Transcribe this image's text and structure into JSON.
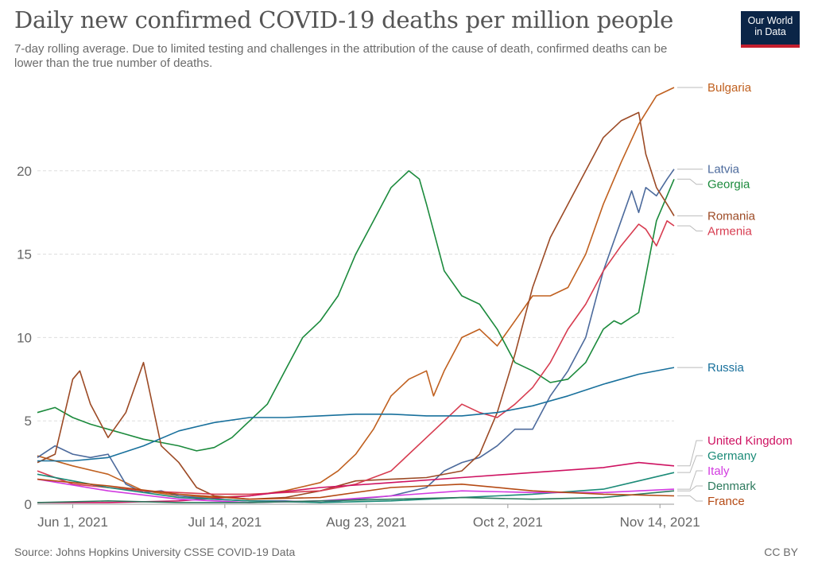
{
  "header": {
    "title": "Daily new confirmed COVID-19 deaths per million people",
    "subtitle": "7-day rolling average. Due to limited testing and challenges in the attribution of the cause of death, confirmed deaths can be lower than the true number of deaths.",
    "logo_line1": "Our World",
    "logo_line2": "in Data"
  },
  "footer": {
    "source": "Source: Johns Hopkins University CSSE COVID-19 Data",
    "license": "CC BY"
  },
  "chart_data": {
    "type": "line",
    "title": "Daily new confirmed COVID-19 deaths per million people",
    "xlabel": "",
    "ylabel": "",
    "x_range": [
      0,
      180
    ],
    "ylim": [
      0,
      25
    ],
    "grid": true,
    "legend_position": "right",
    "y_ticks": [
      0,
      5,
      10,
      15,
      20
    ],
    "x_ticks": [
      {
        "label": "Jun 1, 2021",
        "day": 10
      },
      {
        "label": "Jul 14, 2021",
        "day": 53
      },
      {
        "label": "Aug 23, 2021",
        "day": 93
      },
      {
        "label": "Oct 2, 2021",
        "day": 133
      },
      {
        "label": "Nov 14, 2021",
        "day": 176
      }
    ],
    "x_note": "x values are days since May 22, 2021",
    "series": [
      {
        "name": "Bulgaria",
        "color": "#c0601f",
        "x": [
          0,
          10,
          20,
          25,
          30,
          40,
          50,
          60,
          70,
          80,
          85,
          90,
          95,
          100,
          105,
          110,
          112,
          115,
          120,
          125,
          130,
          135,
          140,
          145,
          150,
          155,
          160,
          165,
          170,
          175,
          180
        ],
        "y": [
          2.9,
          2.3,
          1.8,
          1.3,
          0.8,
          0.5,
          0.4,
          0.5,
          0.8,
          1.3,
          2.0,
          3.0,
          4.5,
          6.5,
          7.5,
          8.0,
          6.5,
          8.0,
          10.0,
          10.5,
          9.5,
          11.0,
          12.5,
          12.5,
          13.0,
          15.0,
          18.0,
          20.5,
          22.8,
          24.5,
          25.0
        ]
      },
      {
        "name": "Latvia",
        "color": "#4c6a9c",
        "x": [
          0,
          5,
          10,
          15,
          20,
          25,
          30,
          35,
          40,
          50,
          60,
          70,
          80,
          90,
          100,
          110,
          115,
          120,
          125,
          130,
          135,
          140,
          145,
          150,
          155,
          160,
          165,
          168,
          170,
          172,
          175,
          178,
          180
        ],
        "y": [
          2.8,
          3.5,
          3.0,
          2.8,
          3.0,
          1.2,
          0.7,
          0.8,
          0.5,
          0.3,
          0.2,
          0.2,
          0.1,
          0.3,
          0.5,
          1.0,
          2.0,
          2.5,
          2.8,
          3.5,
          4.5,
          4.5,
          6.5,
          8.0,
          10.0,
          14.0,
          17.0,
          18.8,
          17.5,
          19.0,
          18.5,
          19.5,
          20.1
        ]
      },
      {
        "name": "Georgia",
        "color": "#1b8a3c",
        "x": [
          0,
          5,
          10,
          15,
          20,
          25,
          30,
          35,
          40,
          45,
          50,
          55,
          60,
          65,
          70,
          75,
          80,
          85,
          90,
          95,
          100,
          105,
          108,
          110,
          115,
          120,
          125,
          130,
          135,
          140,
          145,
          150,
          155,
          160,
          163,
          165,
          170,
          175,
          180
        ],
        "y": [
          5.5,
          5.8,
          5.2,
          4.8,
          4.5,
          4.2,
          3.9,
          3.7,
          3.5,
          3.2,
          3.4,
          4.0,
          5.0,
          6.0,
          8.0,
          10.0,
          11.0,
          12.5,
          15.0,
          17.0,
          19.0,
          20.0,
          19.5,
          18.0,
          14.0,
          12.5,
          12.0,
          10.5,
          8.5,
          8.0,
          7.3,
          7.5,
          8.5,
          10.5,
          11.0,
          10.8,
          11.5,
          17.0,
          19.5
        ]
      },
      {
        "name": "Romania",
        "color": "#9c4a25",
        "x": [
          0,
          5,
          10,
          12,
          15,
          20,
          25,
          30,
          35,
          40,
          45,
          50,
          60,
          70,
          80,
          90,
          100,
          110,
          120,
          125,
          130,
          135,
          140,
          145,
          150,
          155,
          160,
          165,
          170,
          172,
          175,
          178,
          180
        ],
        "y": [
          2.5,
          3.0,
          7.5,
          8.0,
          6.0,
          4.0,
          5.5,
          8.5,
          3.5,
          2.5,
          1.0,
          0.5,
          0.3,
          0.4,
          0.8,
          1.4,
          1.5,
          1.6,
          2.0,
          3.0,
          5.5,
          9.0,
          13.0,
          16.0,
          18.0,
          20.0,
          22.0,
          23.0,
          23.5,
          21.0,
          19.0,
          18.0,
          17.3
        ]
      },
      {
        "name": "Armenia",
        "color": "#d73c50",
        "x": [
          0,
          10,
          20,
          30,
          40,
          50,
          60,
          70,
          80,
          90,
          100,
          110,
          115,
          120,
          125,
          130,
          135,
          140,
          145,
          150,
          155,
          160,
          165,
          170,
          172,
          175,
          178,
          180
        ],
        "y": [
          2.0,
          1.2,
          1.0,
          0.8,
          0.7,
          0.6,
          0.6,
          0.7,
          0.8,
          1.2,
          2.0,
          4.0,
          5.0,
          6.0,
          5.5,
          5.2,
          6.0,
          7.0,
          8.5,
          10.5,
          12.0,
          14.0,
          15.5,
          16.8,
          16.5,
          15.5,
          17.0,
          16.7
        ]
      },
      {
        "name": "Russia",
        "color": "#18709c",
        "x": [
          0,
          10,
          20,
          30,
          40,
          50,
          60,
          70,
          80,
          90,
          100,
          110,
          120,
          130,
          140,
          150,
          160,
          170,
          180
        ],
        "y": [
          2.6,
          2.6,
          2.8,
          3.5,
          4.4,
          4.9,
          5.2,
          5.2,
          5.3,
          5.4,
          5.4,
          5.3,
          5.3,
          5.5,
          5.9,
          6.5,
          7.2,
          7.8,
          8.2
        ]
      },
      {
        "name": "United Kingdom",
        "color": "#ce1261",
        "x": [
          0,
          20,
          40,
          60,
          80,
          100,
          120,
          140,
          160,
          170,
          180
        ],
        "y": [
          0.1,
          0.1,
          0.2,
          0.5,
          1.0,
          1.3,
          1.6,
          1.9,
          2.2,
          2.5,
          2.3
        ]
      },
      {
        "name": "Germany",
        "color": "#1c8b78",
        "x": [
          0,
          20,
          40,
          60,
          80,
          100,
          120,
          140,
          160,
          170,
          180
        ],
        "y": [
          1.8,
          1.0,
          0.4,
          0.2,
          0.1,
          0.2,
          0.4,
          0.6,
          0.9,
          1.4,
          1.9
        ]
      },
      {
        "name": "Italy",
        "color": "#d23be0",
        "x": [
          0,
          20,
          40,
          60,
          80,
          100,
          120,
          140,
          160,
          180
        ],
        "y": [
          1.5,
          0.8,
          0.3,
          0.1,
          0.2,
          0.5,
          0.8,
          0.7,
          0.7,
          0.9
        ]
      },
      {
        "name": "Denmark",
        "color": "#2e7a5e",
        "x": [
          0,
          20,
          40,
          60,
          80,
          100,
          120,
          140,
          160,
          180
        ],
        "y": [
          0.1,
          0.2,
          0.1,
          0.1,
          0.2,
          0.3,
          0.4,
          0.3,
          0.4,
          0.8
        ]
      },
      {
        "name": "France",
        "color": "#b54a14",
        "x": [
          0,
          20,
          40,
          60,
          80,
          100,
          120,
          140,
          160,
          180
        ],
        "y": [
          1.5,
          1.1,
          0.6,
          0.3,
          0.4,
          1.0,
          1.2,
          0.8,
          0.6,
          0.5
        ]
      }
    ]
  }
}
